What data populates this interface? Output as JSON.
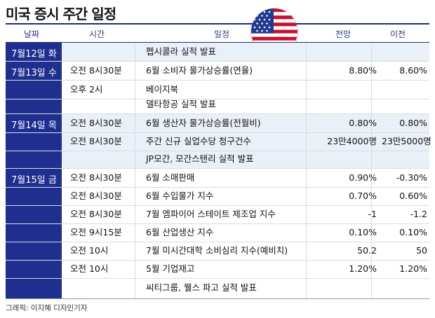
{
  "title": "미국 증시 주간 일정",
  "headers": {
    "date": "날짜",
    "time": "시간",
    "event": "일정",
    "forecast": "전망",
    "previous": "이전"
  },
  "dates": [
    {
      "label": "7월12일 화"
    },
    {
      "label": "7월13일 수"
    },
    {
      "label": "7월14일 목"
    },
    {
      "label": "7월15일 금"
    }
  ],
  "rows": [
    {
      "time": "",
      "event": "펩시콜라 실적 발표",
      "forecast": "",
      "previous": ""
    },
    {
      "time": "오전 8시30분",
      "event": "6월 소비자 물가상승률(연율)",
      "forecast": "8.80%",
      "previous": "8.60%"
    },
    {
      "time": "오후 2시",
      "event": "베이지북",
      "forecast": "",
      "previous": ""
    },
    {
      "time": "",
      "event": "델타항공 실적 발표",
      "forecast": "",
      "previous": ""
    },
    {
      "time": "오전 8시30분",
      "event": "6월 생산자 물가상승률(전월비)",
      "forecast": "0.80%",
      "previous": "0.80%"
    },
    {
      "time": "오전 8시30분",
      "event": "주간 신규 실업수당 청구건수",
      "forecast": "23만4000명",
      "previous": "23만5000명"
    },
    {
      "time": "",
      "event": "JP모간, 모간스탠리 실적 발표",
      "forecast": "",
      "previous": ""
    },
    {
      "time": "오전 8시30분",
      "event": "6월 소매판매",
      "forecast": "0.90%",
      "previous": "-0.30%"
    },
    {
      "time": "오전 8시30분",
      "event": "6월 수입물가 지수",
      "forecast": "0.70%",
      "previous": "0.60%"
    },
    {
      "time": "오전 8시30분",
      "event": "7월 엠파이어 스테이트 제조업 지수",
      "forecast": "-1",
      "previous": "-1.2"
    },
    {
      "time": "오전 9시15분",
      "event": "6월 산업생산 지수",
      "forecast": "0.10%",
      "previous": "0.10%"
    },
    {
      "time": "오전 10시",
      "event": "7월 미시간대학 소비심리 지수(예비치)",
      "forecast": "50.2",
      "previous": "50"
    },
    {
      "time": "오전 10시",
      "event": "5월 기업재고",
      "forecast": "1.20%",
      "previous": "1.20%"
    },
    {
      "time": "",
      "event": "씨티그룹, 웰스 파고 실적 발표",
      "forecast": "",
      "previous": ""
    }
  ],
  "footer": "그래픽: 이지혜 디자인기자",
  "colors": {
    "date_block": "#1e2f8f",
    "header_text": "#2b3a8a",
    "row_shade": "#eaf0f8"
  },
  "icon": "us-flag-icon"
}
